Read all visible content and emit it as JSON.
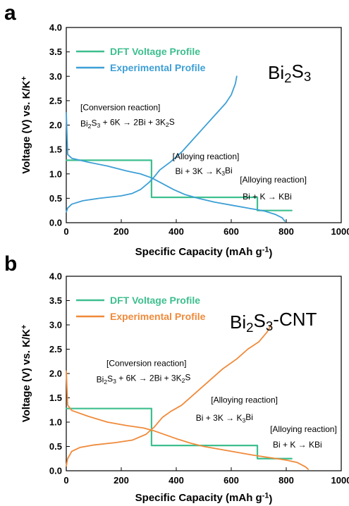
{
  "chart_data": [
    {
      "panel_label": "a",
      "type": "line",
      "material_parts": [
        [
          "Bi",
          "n"
        ],
        [
          "2",
          "sub"
        ],
        [
          "S",
          "n"
        ],
        [
          "3",
          "sub"
        ]
      ],
      "ylabel_parts": [
        [
          "Voltage (V) vs. K/K",
          "n"
        ],
        [
          "+",
          "sup"
        ]
      ],
      "xlabel_parts": [
        [
          "Specific Capacity ",
          "b"
        ],
        [
          "(mAh g",
          "n"
        ],
        [
          "-1",
          "sup"
        ],
        [
          ")",
          "n"
        ]
      ],
      "xlim": [
        0,
        1000
      ],
      "ylim": [
        0,
        4.0
      ],
      "xticks": [
        0,
        200,
        400,
        600,
        800,
        1000
      ],
      "xtick_labels": [
        "0",
        "200",
        "400",
        "600",
        "800",
        "1000"
      ],
      "yticks": [
        0,
        0.5,
        1.0,
        1.5,
        2.0,
        2.5,
        3.0,
        3.5,
        4.0
      ],
      "ytick_labels": [
        "0.0",
        "0.5",
        "1.0",
        "1.5",
        "2.0",
        "2.5",
        "3.0",
        "3.5",
        "4.0"
      ],
      "legend": [
        {
          "name": "DFT Voltage Profile",
          "color": "#3dbf8f"
        },
        {
          "name": "Experimental Profile",
          "color": "#3d9fd6"
        }
      ],
      "series": [
        {
          "name": "DFT Voltage Profile",
          "color": "#3dbf8f",
          "kind": "step",
          "points": [
            [
              0,
              1.28
            ],
            [
              310,
              1.28
            ],
            [
              310,
              0.52
            ],
            [
              695,
              0.52
            ],
            [
              695,
              0.25
            ],
            [
              820,
              0.25
            ]
          ]
        },
        {
          "name": "Experimental Profile",
          "color": "#3d9fd6",
          "kind": "discharge",
          "points": [
            [
              0,
              2.25
            ],
            [
              5,
              1.4
            ],
            [
              20,
              1.32
            ],
            [
              80,
              1.24
            ],
            [
              150,
              1.16
            ],
            [
              220,
              1.06
            ],
            [
              270,
              1.0
            ],
            [
              310,
              0.92
            ],
            [
              350,
              0.8
            ],
            [
              390,
              0.68
            ],
            [
              430,
              0.58
            ],
            [
              480,
              0.5
            ],
            [
              540,
              0.42
            ],
            [
              600,
              0.36
            ],
            [
              660,
              0.3
            ],
            [
              720,
              0.24
            ],
            [
              760,
              0.17
            ],
            [
              785,
              0.1
            ],
            [
              795,
              0.03
            ]
          ]
        },
        {
          "name": "Experimental Profile",
          "color": "#3d9fd6",
          "kind": "charge",
          "points": [
            [
              0,
              0.22
            ],
            [
              5,
              0.3
            ],
            [
              20,
              0.38
            ],
            [
              60,
              0.45
            ],
            [
              120,
              0.5
            ],
            [
              200,
              0.55
            ],
            [
              240,
              0.6
            ],
            [
              270,
              0.68
            ],
            [
              300,
              0.82
            ],
            [
              320,
              0.94
            ],
            [
              340,
              1.08
            ],
            [
              380,
              1.25
            ],
            [
              420,
              1.45
            ],
            [
              460,
              1.7
            ],
            [
              500,
              1.95
            ],
            [
              540,
              2.2
            ],
            [
              580,
              2.45
            ],
            [
              600,
              2.62
            ],
            [
              615,
              2.85
            ],
            [
              620,
              3.0
            ]
          ]
        }
      ],
      "annotations": [
        {
          "parts": [
            [
              "[Conversion reaction]",
              "n"
            ]
          ],
          "x": 0,
          "y": 2.3,
          "anchor": "start"
        },
        {
          "parts": [
            [
              "Bi",
              "n"
            ],
            [
              "2",
              "sub"
            ],
            [
              "S",
              "n"
            ],
            [
              "3",
              "sub"
            ],
            [
              " + 6K → 2Bi + 3K",
              "n"
            ],
            [
              "2",
              "sub"
            ],
            [
              "S",
              "n"
            ]
          ],
          "x": 0,
          "y": 1.97,
          "anchor": "start"
        },
        {
          "parts": [
            [
              "[Alloying reaction]",
              "n"
            ]
          ],
          "x": 335,
          "y": 1.3,
          "anchor": "start"
        },
        {
          "parts": [
            [
              "Bi + 3K →  K",
              "n"
            ],
            [
              "3",
              "sub"
            ],
            [
              "Bi",
              "n"
            ]
          ],
          "x": 345,
          "y": 1.0,
          "anchor": "start"
        },
        {
          "parts": [
            [
              "[Alloying reaction]",
              "n"
            ]
          ],
          "x": 580,
          "y": 0.82,
          "anchor": "start"
        },
        {
          "parts": [
            [
              "Bi + K →  KBi",
              "n"
            ]
          ],
          "x": 590,
          "y": 0.48,
          "anchor": "start"
        }
      ]
    },
    {
      "panel_label": "b",
      "type": "line",
      "material_parts": [
        [
          "Bi",
          "n"
        ],
        [
          "2",
          "sub"
        ],
        [
          "S",
          "n"
        ],
        [
          "3",
          "sub"
        ],
        [
          "-CNT",
          "n"
        ]
      ],
      "ylabel_parts": [
        [
          "Voltage (V) vs. K/K",
          "n"
        ],
        [
          "+",
          "sup"
        ]
      ],
      "xlabel_parts": [
        [
          "Specific Capacity ",
          "b"
        ],
        [
          "(mAh g",
          "n"
        ],
        [
          "-1",
          "sup"
        ],
        [
          ")",
          "n"
        ]
      ],
      "xlim": [
        0,
        1000
      ],
      "ylim": [
        0,
        4.0
      ],
      "xticks": [
        0,
        200,
        400,
        600,
        800,
        1000
      ],
      "xtick_labels": [
        "0",
        "200",
        "400",
        "600",
        "800",
        "1000"
      ],
      "yticks": [
        0,
        0.5,
        1.0,
        1.5,
        2.0,
        2.5,
        3.0,
        3.5,
        4.0
      ],
      "ytick_labels": [
        "0.0",
        "0.5",
        "1.0",
        "1.5",
        "2.0",
        "2.5",
        "3.0",
        "3.5",
        "4.0"
      ],
      "legend": [
        {
          "name": "DFT Voltage Profile",
          "color": "#3dbf8f"
        },
        {
          "name": "Experimental Profile",
          "color": "#f08a3a"
        }
      ],
      "series": [
        {
          "name": "DFT Voltage Profile",
          "color": "#3dbf8f",
          "kind": "step",
          "points": [
            [
              0,
              1.28
            ],
            [
              310,
              1.28
            ],
            [
              310,
              0.52
            ],
            [
              695,
              0.52
            ],
            [
              695,
              0.25
            ],
            [
              820,
              0.25
            ]
          ]
        },
        {
          "name": "Experimental Profile",
          "color": "#f08a3a",
          "kind": "discharge",
          "points": [
            [
              0,
              2.05
            ],
            [
              5,
              1.35
            ],
            [
              20,
              1.24
            ],
            [
              80,
              1.12
            ],
            [
              150,
              1.0
            ],
            [
              220,
              0.93
            ],
            [
              280,
              0.88
            ],
            [
              320,
              0.82
            ],
            [
              360,
              0.74
            ],
            [
              400,
              0.66
            ],
            [
              450,
              0.57
            ],
            [
              500,
              0.5
            ],
            [
              560,
              0.44
            ],
            [
              620,
              0.38
            ],
            [
              680,
              0.32
            ],
            [
              740,
              0.27
            ],
            [
              800,
              0.22
            ],
            [
              840,
              0.17
            ],
            [
              870,
              0.08
            ],
            [
              880,
              0.03
            ]
          ]
        },
        {
          "name": "Experimental Profile",
          "color": "#f08a3a",
          "kind": "charge",
          "points": [
            [
              0,
              0.1
            ],
            [
              5,
              0.25
            ],
            [
              20,
              0.4
            ],
            [
              50,
              0.48
            ],
            [
              100,
              0.53
            ],
            [
              180,
              0.58
            ],
            [
              240,
              0.63
            ],
            [
              290,
              0.75
            ],
            [
              320,
              0.9
            ],
            [
              350,
              1.1
            ],
            [
              380,
              1.22
            ],
            [
              420,
              1.35
            ],
            [
              470,
              1.6
            ],
            [
              520,
              1.85
            ],
            [
              570,
              2.1
            ],
            [
              620,
              2.3
            ],
            [
              660,
              2.5
            ],
            [
              700,
              2.65
            ],
            [
              730,
              2.85
            ],
            [
              745,
              3.0
            ]
          ]
        }
      ],
      "annotations": [
        {
          "parts": [
            [
              "[Conversion reaction]",
              "n"
            ]
          ],
          "x": 95,
          "y": 2.15,
          "anchor": "start"
        },
        {
          "parts": [
            [
              "Bi",
              "n"
            ],
            [
              "2",
              "sub"
            ],
            [
              "S",
              "n"
            ],
            [
              "3",
              "sub"
            ],
            [
              " + 6K → 2Bi + 3K",
              "n"
            ],
            [
              "2",
              "sub"
            ],
            [
              "S",
              "n"
            ]
          ],
          "x": 58,
          "y": 1.82,
          "anchor": "start"
        },
        {
          "parts": [
            [
              "[Alloying reaction]",
              "n"
            ]
          ],
          "x": 475,
          "y": 1.4,
          "anchor": "start"
        },
        {
          "parts": [
            [
              "Bi + 3K →  K",
              "n"
            ],
            [
              "3",
              "sub"
            ],
            [
              "Bi",
              "n"
            ]
          ],
          "x": 420,
          "y": 1.03,
          "anchor": "start"
        },
        {
          "parts": [
            [
              "[Alloying reaction]",
              "n"
            ]
          ],
          "x": 690,
          "y": 0.8,
          "anchor": "start"
        },
        {
          "parts": [
            [
              "Bi + K →  KBi",
              "n"
            ]
          ],
          "x": 700,
          "y": 0.48,
          "anchor": "start"
        }
      ]
    }
  ]
}
